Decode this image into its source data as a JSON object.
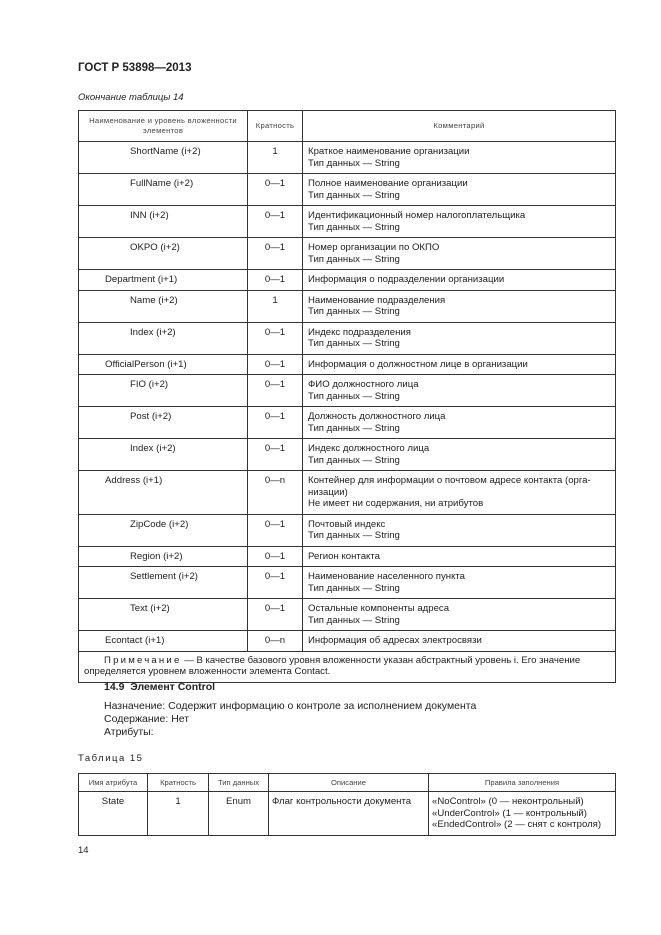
{
  "header": {
    "doc_title": "ГОСТ Р 53898—2013"
  },
  "table14": {
    "caption": "Окончание таблицы 14",
    "columns": [
      "Наименование и уровень вложенности элементов",
      "Кратность",
      "Комментарий"
    ],
    "rows": [
      {
        "name": "ShortName (i+2)",
        "level": 2,
        "mult": "1",
        "comment": [
          "Краткое наименование организации",
          "Тип данных — String"
        ]
      },
      {
        "name": "FullName (i+2)",
        "level": 2,
        "mult": "0—1",
        "comment": [
          "Полное наименование организации",
          "Тип данных — String"
        ]
      },
      {
        "name": "INN (i+2)",
        "level": 2,
        "mult": "0—1",
        "comment": [
          "Идентификационный номер налогоплательщика",
          "Тип данных — String"
        ]
      },
      {
        "name": "OKPO (i+2)",
        "level": 2,
        "mult": "0—1",
        "comment": [
          "Номер организации по ОКПО",
          "Тип данных — String"
        ]
      },
      {
        "name": "Department (i+1)",
        "level": 1,
        "mult": "0—1",
        "comment": [
          "Информация о подразделении организации"
        ]
      },
      {
        "name": "Name (i+2)",
        "level": 2,
        "mult": "1",
        "comment": [
          "Наименование подразделения",
          "Тип данных — String"
        ]
      },
      {
        "name": "Index (i+2)",
        "level": 2,
        "mult": "0—1",
        "comment": [
          "Индекс подразделения",
          "Тип данных — String"
        ]
      },
      {
        "name": "OfficialPerson (i+1)",
        "level": 1,
        "mult": "0—1",
        "comment": [
          "Информация о должностном лице в организации"
        ]
      },
      {
        "name": "FIO (i+2)",
        "level": 2,
        "mult": "0—1",
        "comment": [
          "ФИО должностного лица",
          "Тип данных — String"
        ]
      },
      {
        "name": "Post (i+2)",
        "level": 2,
        "mult": "0—1",
        "comment": [
          "Должность должностного лица",
          "Тип данных — String"
        ]
      },
      {
        "name": "Index (i+2)",
        "level": 2,
        "mult": "0—1",
        "comment": [
          "Индекс должностного лица",
          "Тип данных — String"
        ]
      },
      {
        "name": "Address (i+1)",
        "level": 1,
        "mult": "0—n",
        "comment": [
          "Контейнер для информации о почтовом адресе контакта (орга-",
          "низации)",
          "Не имеет ни содержания, ни атрибутов"
        ]
      },
      {
        "name": "ZipCode (i+2)",
        "level": 2,
        "mult": "0—1",
        "comment": [
          "Почтовый индекс",
          "Тип данных — String"
        ]
      },
      {
        "name": "Region (i+2)",
        "level": 2,
        "mult": "0—1",
        "comment": [
          "Регион контакта"
        ]
      },
      {
        "name": "Settlement (i+2)",
        "level": 2,
        "mult": "0—1",
        "comment": [
          "Наименование населенного пункта",
          "Тип данных — String"
        ]
      },
      {
        "name": "Text (i+2)",
        "level": 2,
        "mult": "0—1",
        "comment": [
          "Остальные компоненты адреса",
          "Тип данных — String"
        ]
      },
      {
        "name": "Econtact (i+1)",
        "level": 1,
        "mult": "0—n",
        "comment": [
          "Информация об адресах электросвязи"
        ]
      }
    ],
    "note_label": "Примечание",
    "note_text": " — В качестве базового уровня вложенности указан абстрактный уровень i. Его значение определяется уровнем вложенности элемента Contact."
  },
  "section": {
    "heading": "14.9  Элемент Control",
    "purpose": "Назначение: Содержит информацию о контроле за исполнением документа",
    "content": "Содержание: Нет",
    "attributes": "Атрибуты:"
  },
  "table15": {
    "caption": "Таблица 15",
    "columns": [
      "Имя атрибута",
      "Кратность",
      "Тип данных",
      "Описание",
      "Правила заполнения"
    ],
    "rows": [
      {
        "name": "State",
        "mult": "1",
        "type": "Enum",
        "desc": "Флаг контрольности документа",
        "rules": [
          "«NoControl» (0 — неконтрольный)",
          "«UnderControl» (1 — контрольный)",
          "«EndedControl» (2 — снят с контроля)"
        ]
      }
    ]
  },
  "footer": {
    "page_number": "14"
  }
}
